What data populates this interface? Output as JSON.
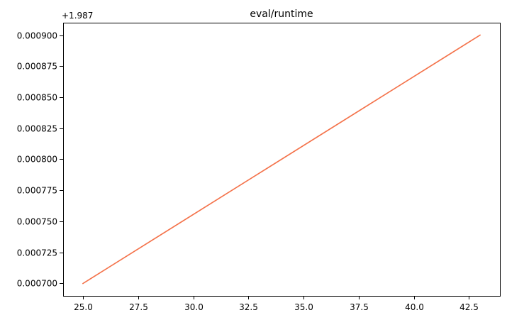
{
  "chart_data": {
    "type": "line",
    "title": "eval/runtime",
    "xlabel": "",
    "ylabel": "",
    "y_offset_label": "+1.987",
    "xlim": [
      24.1,
      43.9
    ],
    "ylim": [
      0.00069,
      0.00091
    ],
    "x_ticks": [
      25.0,
      27.5,
      30.0,
      32.5,
      35.0,
      37.5,
      40.0,
      42.5
    ],
    "x_tick_labels": [
      "25.0",
      "27.5",
      "30.0",
      "32.5",
      "35.0",
      "37.5",
      "40.0",
      "42.5"
    ],
    "y_ticks": [
      0.0007,
      0.000725,
      0.00075,
      0.000775,
      0.0008,
      0.000825,
      0.00085,
      0.000875,
      0.0009
    ],
    "y_tick_labels": [
      "0.000700",
      "0.000725",
      "0.000750",
      "0.000775",
      "0.000800",
      "0.000825",
      "0.000850",
      "0.000875",
      "0.000900"
    ],
    "grid": false,
    "series": [
      {
        "color": "#f4724a",
        "x": [
          25,
          43
        ],
        "y": [
          0.0007,
          0.0009
        ]
      }
    ]
  }
}
